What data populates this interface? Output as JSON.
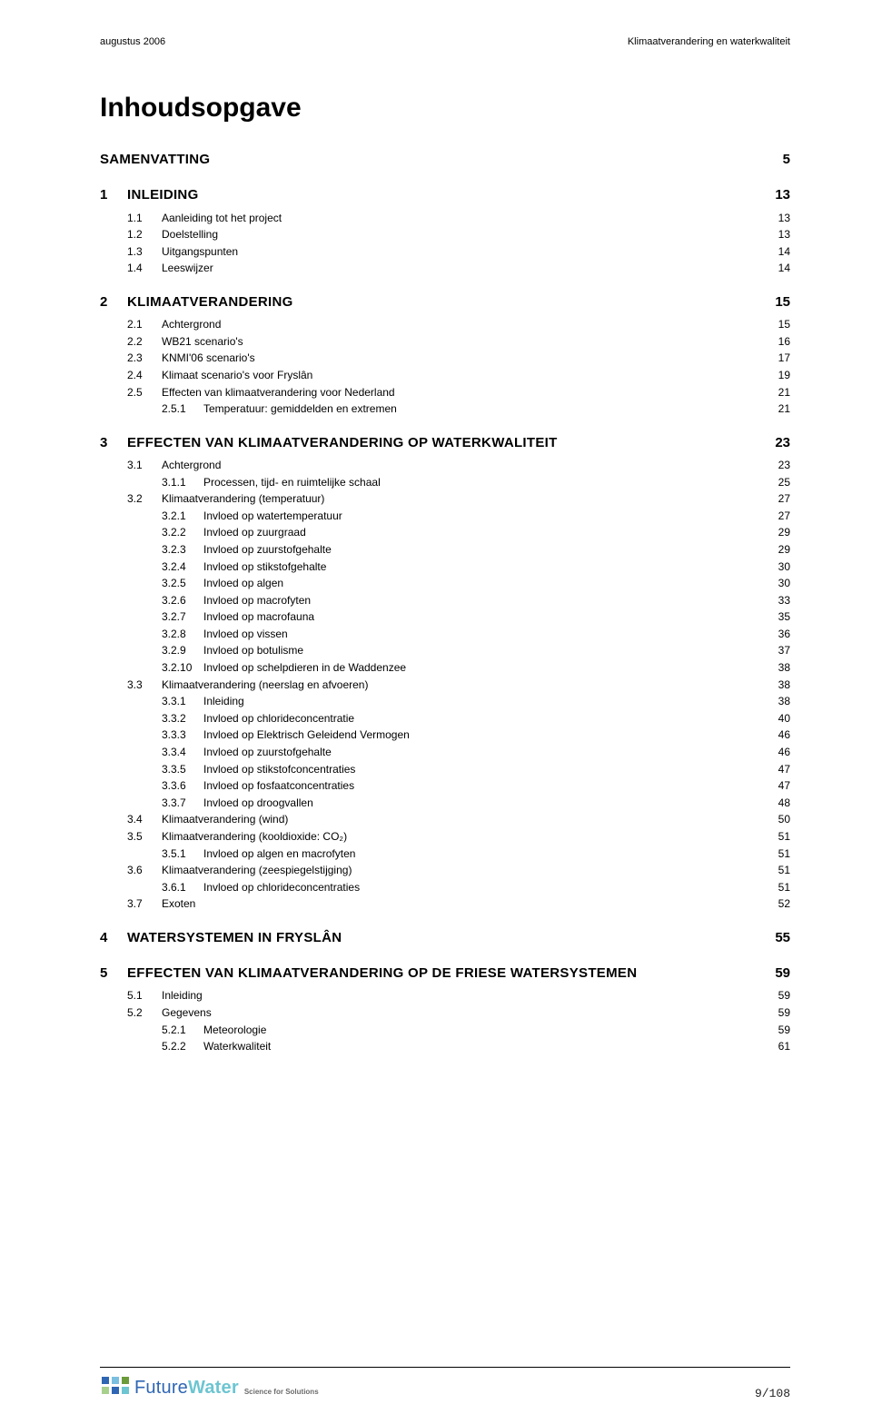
{
  "header": {
    "left": "augustus 2006",
    "right": "Klimaatverandering en waterkwaliteit"
  },
  "title": "Inhoudsopgave",
  "toc": [
    {
      "level": 1,
      "num": "",
      "label": "SAMENVATTING",
      "page": "5",
      "sc": true
    },
    {
      "level": 1,
      "num": "1",
      "label": "INLEIDING",
      "page": "13",
      "sc": true
    },
    {
      "level": 2,
      "num": "1.1",
      "label": "Aanleiding tot het project",
      "page": "13"
    },
    {
      "level": 2,
      "num": "1.2",
      "label": "Doelstelling",
      "page": "13"
    },
    {
      "level": 2,
      "num": "1.3",
      "label": "Uitgangspunten",
      "page": "14"
    },
    {
      "level": 2,
      "num": "1.4",
      "label": "Leeswijzer",
      "page": "14"
    },
    {
      "level": 1,
      "num": "2",
      "label": "KLIMAATVERANDERING",
      "page": "15",
      "sc": true
    },
    {
      "level": 2,
      "num": "2.1",
      "label": "Achtergrond",
      "page": "15"
    },
    {
      "level": 2,
      "num": "2.2",
      "label": "WB21 scenario's",
      "page": "16"
    },
    {
      "level": 2,
      "num": "2.3",
      "label": "KNMI'06 scenario's",
      "page": "17"
    },
    {
      "level": 2,
      "num": "2.4",
      "label": "Klimaat scenario's voor Fryslân",
      "page": "19"
    },
    {
      "level": 2,
      "num": "2.5",
      "label": "Effecten van klimaatverandering voor Nederland",
      "page": "21"
    },
    {
      "level": 3,
      "num": "2.5.1",
      "label": "Temperatuur: gemiddelden en extremen",
      "page": "21"
    },
    {
      "level": 1,
      "num": "3",
      "label": "EFFECTEN VAN KLIMAATVERANDERING OP WATERKWALITEIT",
      "page": "23",
      "sc": true
    },
    {
      "level": 2,
      "num": "3.1",
      "label": "Achtergrond",
      "page": "23"
    },
    {
      "level": 3,
      "num": "3.1.1",
      "label": "Processen, tijd- en ruimtelijke schaal",
      "page": "25"
    },
    {
      "level": 2,
      "num": "3.2",
      "label": "Klimaatverandering (temperatuur)",
      "page": "27"
    },
    {
      "level": 3,
      "num": "3.2.1",
      "label": "Invloed op watertemperatuur",
      "page": "27"
    },
    {
      "level": 3,
      "num": "3.2.2",
      "label": "Invloed op zuurgraad",
      "page": "29"
    },
    {
      "level": 3,
      "num": "3.2.3",
      "label": "Invloed op zuurstofgehalte",
      "page": "29"
    },
    {
      "level": 3,
      "num": "3.2.4",
      "label": "Invloed op stikstofgehalte",
      "page": "30"
    },
    {
      "level": 3,
      "num": "3.2.5",
      "label": "Invloed op algen",
      "page": "30"
    },
    {
      "level": 3,
      "num": "3.2.6",
      "label": "Invloed op macrofyten",
      "page": "33"
    },
    {
      "level": 3,
      "num": "3.2.7",
      "label": "Invloed op macrofauna",
      "page": "35"
    },
    {
      "level": 3,
      "num": "3.2.8",
      "label": "Invloed op vissen",
      "page": "36"
    },
    {
      "level": 3,
      "num": "3.2.9",
      "label": "Invloed op botulisme",
      "page": "37"
    },
    {
      "level": 3,
      "num": "3.2.10",
      "label": "Invloed op schelpdieren in de Waddenzee",
      "page": "38"
    },
    {
      "level": 2,
      "num": "3.3",
      "label": "Klimaatverandering (neerslag en afvoeren)",
      "page": "38"
    },
    {
      "level": 3,
      "num": "3.3.1",
      "label": "Inleiding",
      "page": "38"
    },
    {
      "level": 3,
      "num": "3.3.2",
      "label": "Invloed op chlorideconcentratie",
      "page": "40"
    },
    {
      "level": 3,
      "num": "3.3.3",
      "label": "Invloed op Elektrisch Geleidend Vermogen",
      "page": "46"
    },
    {
      "level": 3,
      "num": "3.3.4",
      "label": "Invloed op zuurstofgehalte",
      "page": "46"
    },
    {
      "level": 3,
      "num": "3.3.5",
      "label": "Invloed op stikstofconcentraties",
      "page": "47"
    },
    {
      "level": 3,
      "num": "3.3.6",
      "label": "Invloed op fosfaatconcentraties",
      "page": "47"
    },
    {
      "level": 3,
      "num": "3.3.7",
      "label": "Invloed op droogvallen",
      "page": "48"
    },
    {
      "level": 2,
      "num": "3.4",
      "label": "Klimaatverandering (wind)",
      "page": "50"
    },
    {
      "level": 2,
      "num": "3.5",
      "label": "Klimaatverandering (kooldioxide: CO₂)",
      "page": "51"
    },
    {
      "level": 3,
      "num": "3.5.1",
      "label": "Invloed op algen en macrofyten",
      "page": "51"
    },
    {
      "level": 2,
      "num": "3.6",
      "label": "Klimaatverandering (zeespiegelstijging)",
      "page": "51"
    },
    {
      "level": 3,
      "num": "3.6.1",
      "label": "Invloed op chlorideconcentraties",
      "page": "51"
    },
    {
      "level": 2,
      "num": "3.7",
      "label": "Exoten",
      "page": "52"
    },
    {
      "level": 1,
      "num": "4",
      "label": "WATERSYSTEMEN IN FRYSLÂN",
      "page": "55",
      "sc": true
    },
    {
      "level": 1,
      "num": "5",
      "label": "EFFECTEN VAN KLIMAATVERANDERING OP DE FRIESE WATERSYSTEMEN",
      "page": "59",
      "sc": true
    },
    {
      "level": 2,
      "num": "5.1",
      "label": "Inleiding",
      "page": "59"
    },
    {
      "level": 2,
      "num": "5.2",
      "label": "Gegevens",
      "page": "59"
    },
    {
      "level": 3,
      "num": "5.2.1",
      "label": "Meteorologie",
      "page": "59"
    },
    {
      "level": 3,
      "num": "5.2.2",
      "label": "Waterkwaliteit",
      "page": "61"
    }
  ],
  "footer": {
    "logo_future": "Future",
    "logo_water": "Water",
    "logo_tag": "Science for Solutions",
    "page_num": "9/108"
  },
  "colors": {
    "logo_future": "#2f66b3",
    "logo_water": "#6cc5d1",
    "logo_tag": "#6b6b6b",
    "text": "#000000",
    "background": "#ffffff"
  }
}
